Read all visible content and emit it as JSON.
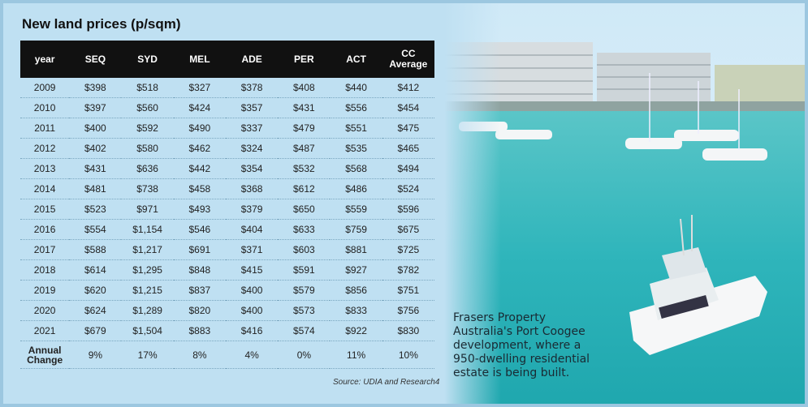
{
  "title": "New land prices (p/sqm)",
  "table": {
    "header": [
      "year",
      "SEQ",
      "SYD",
      "MEL",
      "ADE",
      "PER",
      "ACT",
      "CC Average"
    ],
    "rows": [
      [
        "2009",
        "$398",
        "$518",
        "$327",
        "$378",
        "$408",
        "$440",
        "$412"
      ],
      [
        "2010",
        "$397",
        "$560",
        "$424",
        "$357",
        "$431",
        "$556",
        "$454"
      ],
      [
        "2011",
        "$400",
        "$592",
        "$490",
        "$337",
        "$479",
        "$551",
        "$475"
      ],
      [
        "2012",
        "$402",
        "$580",
        "$462",
        "$324",
        "$487",
        "$535",
        "$465"
      ],
      [
        "2013",
        "$431",
        "$636",
        "$442",
        "$354",
        "$532",
        "$568",
        "$494"
      ],
      [
        "2014",
        "$481",
        "$738",
        "$458",
        "$368",
        "$612",
        "$486",
        "$524"
      ],
      [
        "2015",
        "$523",
        "$971",
        "$493",
        "$379",
        "$650",
        "$559",
        "$596"
      ],
      [
        "2016",
        "$554",
        "$1,154",
        "$546",
        "$404",
        "$633",
        "$759",
        "$675"
      ],
      [
        "2017",
        "$588",
        "$1,217",
        "$691",
        "$371",
        "$603",
        "$881",
        "$725"
      ],
      [
        "2018",
        "$614",
        "$1,295",
        "$848",
        "$415",
        "$591",
        "$927",
        "$782"
      ],
      [
        "2019",
        "$620",
        "$1,215",
        "$837",
        "$400",
        "$579",
        "$856",
        "$751"
      ],
      [
        "2020",
        "$624",
        "$1,289",
        "$820",
        "$400",
        "$573",
        "$833",
        "$756"
      ],
      [
        "2021",
        "$679",
        "$1,504",
        "$883",
        "$416",
        "$574",
        "$922",
        "$830"
      ],
      [
        "Annual Change",
        "9%",
        "17%",
        "8%",
        "4%",
        "0%",
        "11%",
        "10%"
      ]
    ]
  },
  "source": "Source: UDIA and Research4",
  "caption": "Frasers Property Australia's Port Coogee development, where a 950-dwelling residential estate is being built."
}
